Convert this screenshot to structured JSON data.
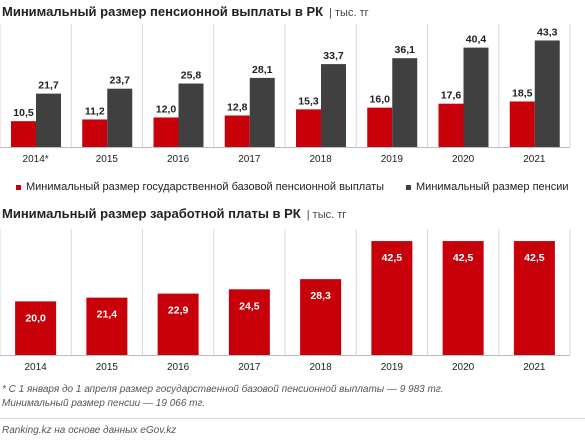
{
  "top": {
    "title": "Минимальный размер пенсионной выплаты в РК",
    "unit": "| тыс. тг"
  },
  "bottom": {
    "title": "Минимальный размер заработной платы в РК",
    "unit": "| тыс. тг"
  },
  "legend": {
    "red": "Минимальный размер государственной базовой пенсионной выплаты",
    "dark": "Минимальный размер пенсии"
  },
  "footnote": {
    "line1": "* С 1 января до 1 апреля размер государственной базовой пенсионной выплаты — 9 983 тг.",
    "line2": "Минимальный размер пенсии — 19 066 тг."
  },
  "source": "Ranking.kz на основе данных eGov.kz",
  "colors": {
    "red": "#c8000a",
    "dark": "#404040",
    "grid": "#d9d9d9"
  },
  "chart_data": [
    {
      "type": "bar",
      "title": "Минимальный размер пенсионной выплаты в РК",
      "unit": "тыс. тг",
      "categories": [
        "2014*",
        "2015",
        "2016",
        "2017",
        "2018",
        "2019",
        "2020",
        "2021"
      ],
      "series": [
        {
          "name": "Минимальный размер государственной базовой пенсионной выплаты",
          "values": [
            10.5,
            11.2,
            12.0,
            12.8,
            15.3,
            16.0,
            17.6,
            18.5
          ],
          "labels": [
            "10,5",
            "11,2",
            "12,0",
            "12,8",
            "15,3",
            "16,0",
            "17,6",
            "18,5"
          ]
        },
        {
          "name": "Минимальный размер пенсии",
          "values": [
            21.7,
            23.7,
            25.8,
            28.1,
            33.7,
            36.1,
            40.4,
            43.3
          ],
          "labels": [
            "21,7",
            "23,7",
            "25,8",
            "28,1",
            "33,7",
            "36,1",
            "40,4",
            "43,3"
          ]
        }
      ],
      "ylim": [
        0,
        50
      ],
      "legend": "bottom"
    },
    {
      "type": "bar",
      "title": "Минимальный размер заработной платы в РК",
      "unit": "тыс. тг",
      "categories": [
        "2014",
        "2015",
        "2016",
        "2017",
        "2018",
        "2019",
        "2020",
        "2021"
      ],
      "values": [
        20.0,
        21.4,
        22.9,
        24.5,
        28.3,
        42.5,
        42.5,
        42.5
      ],
      "labels": [
        "20,0",
        "21,4",
        "22,9",
        "24,5",
        "28,3",
        "42,5",
        "42,5",
        "42,5"
      ],
      "ylim": [
        0,
        47
      ]
    }
  ]
}
